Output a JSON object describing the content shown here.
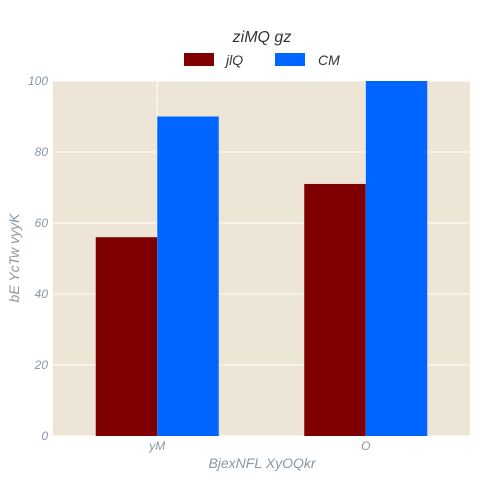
{
  "chart_data": {
    "type": "bar",
    "title": "ziMQ gz",
    "xlabel": "BjexNFL XyOQkr",
    "ylabel": "bE YcTw vyyK",
    "categories": [
      "yM",
      "O"
    ],
    "series": [
      {
        "name": "jlQ",
        "values": [
          56,
          71
        ],
        "color": "#7f0000"
      },
      {
        "name": "CM",
        "values": [
          90,
          100
        ],
        "color": "#0066ff"
      }
    ],
    "ylim": [
      0,
      100
    ],
    "yticks": [
      0,
      20,
      40,
      60,
      80,
      100
    ],
    "grid": true,
    "legend_position": "top-center",
    "background_color": "#ede6d6"
  }
}
